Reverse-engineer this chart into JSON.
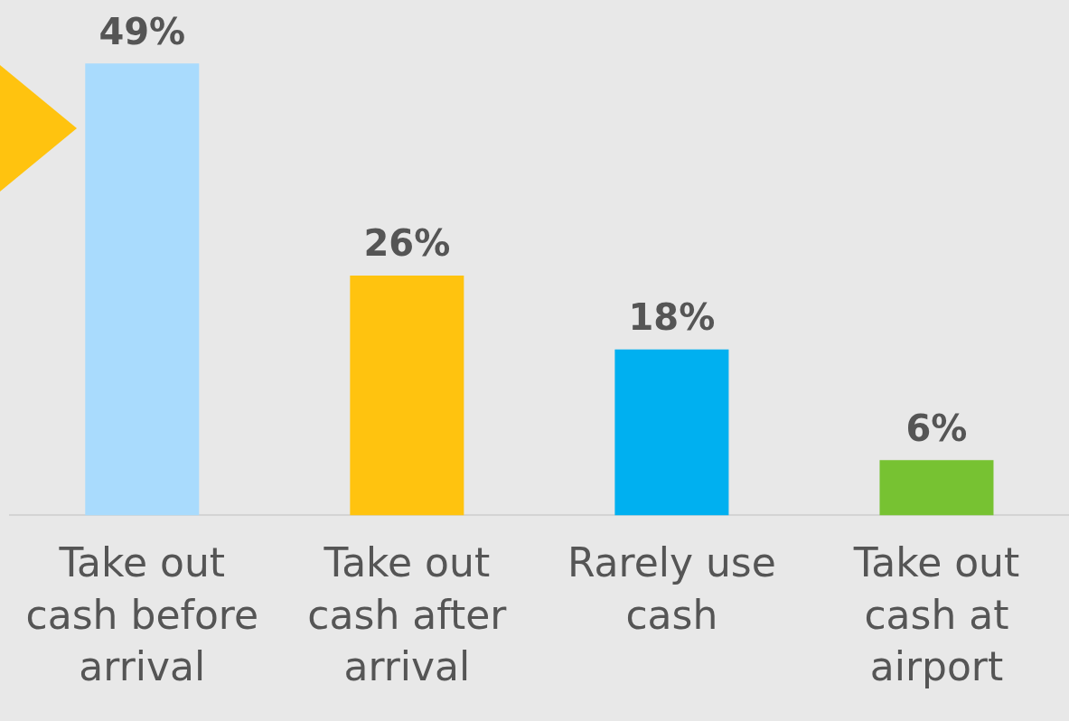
{
  "chart_data": {
    "type": "bar",
    "categories": [
      "Take out cash before arrival",
      "Take out cash after arrival",
      "Rarely use cash",
      "Take out cash at airport"
    ],
    "values": [
      49,
      26,
      18,
      6
    ],
    "colors": [
      "#a9dbfd",
      "#ffc30f",
      "#00b0f0",
      "#77c232"
    ],
    "value_labels": [
      "49%",
      "26%",
      "18%",
      "6%"
    ],
    "tick_labels": "x",
    "grid": false,
    "legend": false
  }
}
